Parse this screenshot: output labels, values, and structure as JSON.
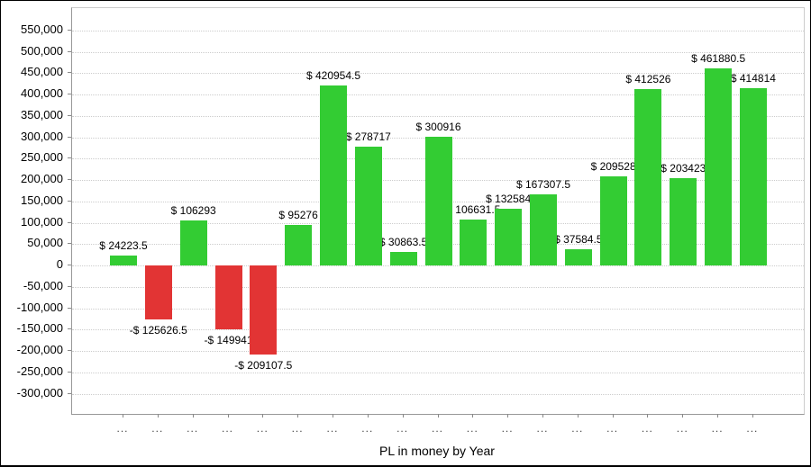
{
  "window": {
    "background": "#ffffff"
  },
  "chart_data": {
    "type": "bar",
    "title": "",
    "xlabel": "PL in money by Year",
    "ylabel": "",
    "legend": "none",
    "grid": "horizontal-dotted",
    "ylim": [
      -346000,
      601000
    ],
    "y_tick_step": 50000,
    "y_ticks": [
      550000,
      500000,
      450000,
      400000,
      350000,
      300000,
      250000,
      200000,
      150000,
      100000,
      50000,
      0,
      -50000,
      -100000,
      -150000,
      -200000,
      -250000,
      -300000
    ],
    "y_tick_labels": [
      "550,000",
      "500,000",
      "450,000",
      "400,000",
      "350,000",
      "300,000",
      "250,000",
      "200,000",
      "150,000",
      "100,000",
      "50,000",
      "0",
      "-50,000",
      "-100,000",
      "-150,000",
      "-200,000",
      "-250,000",
      "-300,000"
    ],
    "x_tick_labels": [
      "...",
      "...",
      "...",
      "...",
      "...",
      "...",
      "...",
      "...",
      "...",
      "...",
      "...",
      "...",
      "...",
      "...",
      "...",
      "...",
      "...",
      "...",
      "..."
    ],
    "values": [
      24223.5,
      -125626.5,
      106293,
      -149941,
      -209107.5,
      95276,
      420954.5,
      278717,
      30863.5,
      300916,
      106631.5,
      132584,
      167307.5,
      37584.5,
      209528,
      412526,
      203423,
      461880.5,
      414814
    ],
    "bar_labels": [
      "$ 24223.5",
      "-$ 125626.5",
      "$ 106293",
      "-$ 149941",
      "-$ 209107.5",
      "$ 95276",
      "$ 420954.5",
      "$ 278717",
      "$ 30863.5",
      "$ 300916",
      "$ 106631.5",
      "$ 132584",
      "$ 167307.5",
      "$ 37584.5",
      "$ 209528",
      "$ 412526",
      "$ 203423",
      "$ 461880.5",
      "$ 414814"
    ],
    "colors": {
      "positive": "#33cc33",
      "negative": "#e23434",
      "gridline": "#cccccc",
      "axis": "#999999",
      "bar_label_text": "#000000",
      "x_tick_text": "#444444",
      "y_tick_text": "#000000"
    }
  }
}
